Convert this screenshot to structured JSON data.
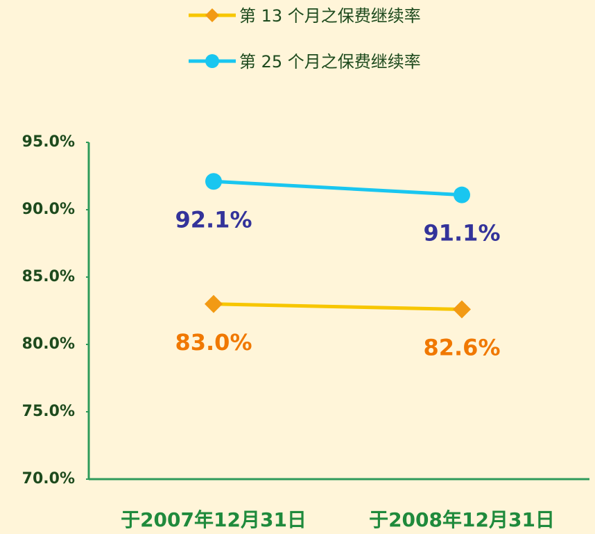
{
  "chart_data": {
    "type": "line",
    "categories": [
      "于2007年12月31日",
      "于2008年12月31日"
    ],
    "series": [
      {
        "name": "第 13 个月之保费继续率",
        "color": "#f7c600",
        "marker_color": "#f29a14",
        "marker": "diamond",
        "label_color": "#f07800",
        "values": [
          83.0,
          82.6
        ],
        "value_labels": [
          "83.0%",
          "82.6%"
        ]
      },
      {
        "name": "第 25 个月之保费继续率",
        "color": "#19c6f0",
        "marker_color": "#19c6f0",
        "marker": "circle",
        "label_color": "#33339a",
        "values": [
          92.1,
          91.1
        ],
        "value_labels": [
          "92.1%",
          "91.1%"
        ]
      }
    ],
    "ylim": [
      70,
      95
    ],
    "yticks": [
      {
        "value": 70,
        "label": "70.0%"
      },
      {
        "value": 75,
        "label": "75.0%"
      },
      {
        "value": 80,
        "label": "80.0%"
      },
      {
        "value": 85,
        "label": "85.0%"
      },
      {
        "value": 90,
        "label": "90.0%"
      },
      {
        "value": 95,
        "label": "95.0%"
      }
    ],
    "grid": false
  }
}
